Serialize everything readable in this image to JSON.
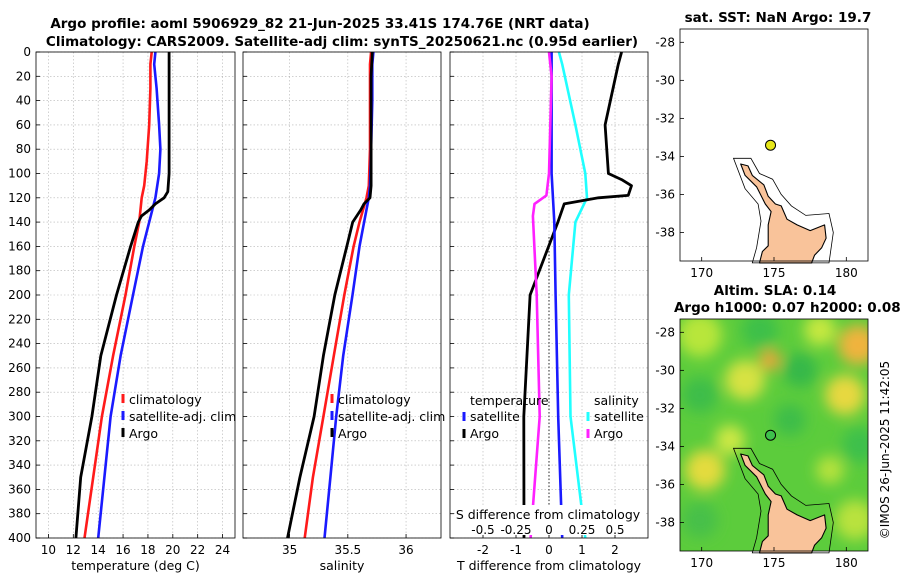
{
  "header": {
    "title_line1": "Argo profile: aoml 5906929_82 21-Jun-2025 33.41S 174.76E (NRT data)",
    "title_line2": "Climatology: CARS2009. Satellite-adj clim: synTS_20250621.nc (0.95d earlier)"
  },
  "colors": {
    "climatology": "#ff1a1a",
    "satellite": "#1a1aff",
    "argo": "#000000",
    "s_diff": "#ff20ff",
    "t_diff": "#20ffff",
    "land": "#f9c39a",
    "marker": "#e6e619"
  },
  "depth_axis": {
    "ticks": [
      0,
      20,
      40,
      60,
      80,
      100,
      120,
      140,
      160,
      180,
      200,
      220,
      240,
      260,
      280,
      300,
      320,
      340,
      360,
      380,
      400
    ],
    "range": [
      0,
      400
    ]
  },
  "chart_data": [
    {
      "type": "line",
      "name": "temperature",
      "xlabel": "temperature (deg C)",
      "ylabel": "depth",
      "xlim": [
        9,
        25
      ],
      "ylim": [
        400,
        0
      ],
      "xticks": [
        10,
        12,
        14,
        16,
        18,
        20,
        22,
        24
      ],
      "legend": [
        "climatology",
        "satellite-adj. clim",
        "Argo"
      ],
      "legend_placement": "lower-right",
      "series": [
        {
          "name": "climatology",
          "depth": [
            0,
            10,
            30,
            60,
            90,
            110,
            120,
            140,
            160,
            200,
            250,
            300,
            350,
            400
          ],
          "values": [
            18.3,
            18.2,
            18.2,
            18.1,
            17.9,
            17.7,
            17.5,
            17.3,
            16.9,
            16.2,
            15.2,
            14.3,
            13.6,
            12.9
          ]
        },
        {
          "name": "satellite-adj. clim",
          "depth": [
            0,
            10,
            30,
            60,
            80,
            100,
            120,
            140,
            160,
            200,
            250,
            300,
            350,
            400
          ],
          "values": [
            18.6,
            18.5,
            18.7,
            18.9,
            19.0,
            18.9,
            18.6,
            18.1,
            17.6,
            16.8,
            15.8,
            15.0,
            14.5,
            14.0
          ]
        },
        {
          "name": "Argo",
          "depth": [
            0,
            20,
            60,
            100,
            115,
            120,
            125,
            130,
            135,
            140,
            160,
            200,
            250,
            300,
            350,
            400
          ],
          "values": [
            19.7,
            19.7,
            19.7,
            19.7,
            19.6,
            19.3,
            18.7,
            18.0,
            17.5,
            17.3,
            16.5,
            15.4,
            14.3,
            13.4,
            12.7,
            12.1
          ]
        }
      ]
    },
    {
      "type": "line",
      "name": "salinity",
      "xlabel": "salinity",
      "ylabel": "depth",
      "xlim": [
        34.6,
        36.3
      ],
      "ylim": [
        400,
        0
      ],
      "xticks": [
        35,
        35.5,
        36
      ],
      "legend": [
        "climatology",
        "satellite-adj. clim",
        "Argo"
      ],
      "legend_placement": "lower-right",
      "series": [
        {
          "name": "climatology",
          "depth": [
            0,
            10,
            40,
            80,
            110,
            120,
            140,
            160,
            200,
            250,
            300,
            350,
            400
          ],
          "values": [
            35.7,
            35.69,
            35.69,
            35.69,
            35.68,
            35.66,
            35.6,
            35.55,
            35.47,
            35.38,
            35.29,
            35.2,
            35.13
          ]
        },
        {
          "name": "satellite-adj. clim",
          "depth": [
            0,
            10,
            40,
            80,
            110,
            120,
            140,
            160,
            200,
            250,
            300,
            350,
            400
          ],
          "values": [
            35.72,
            35.71,
            35.71,
            35.7,
            35.69,
            35.68,
            35.64,
            35.6,
            35.54,
            35.46,
            35.4,
            35.35,
            35.3
          ]
        },
        {
          "name": "Argo",
          "depth": [
            0,
            20,
            60,
            110,
            120,
            125,
            130,
            140,
            160,
            200,
            250,
            300,
            350,
            400
          ],
          "values": [
            35.71,
            35.7,
            35.7,
            35.7,
            35.69,
            35.65,
            35.6,
            35.55,
            35.48,
            35.38,
            35.3,
            35.2,
            35.1,
            34.97
          ]
        }
      ]
    },
    {
      "type": "line",
      "name": "difference from climatology",
      "xlabel": "T difference from climatology",
      "x2label": "S difference from climatology",
      "ylabel": "depth",
      "xlim": [
        -3,
        3
      ],
      "x2lim": [
        -0.75,
        0.75
      ],
      "ylim": [
        400,
        0
      ],
      "xticks": [
        -2,
        -1,
        0,
        1,
        2
      ],
      "x2ticks": [
        -0.5,
        -0.25,
        0,
        0.25,
        0.5
      ],
      "legend_temperature": [
        "temperature",
        "satellite",
        "Argo"
      ],
      "legend_salinity": [
        "salinity",
        "satellite",
        "Argo"
      ],
      "series": [
        {
          "name": "T satellite",
          "depth": [
            0,
            10,
            60,
            100,
            120,
            140,
            200,
            300,
            400
          ],
          "values": [
            0.3,
            0.4,
            0.8,
            1.1,
            1.15,
            0.8,
            0.6,
            0.65,
            1.1
          ]
        },
        {
          "name": "T Argo",
          "depth": [
            0,
            10,
            60,
            100,
            105,
            110,
            118,
            120,
            125,
            140,
            200,
            300,
            400
          ],
          "values": [
            2.2,
            2.1,
            1.7,
            1.8,
            2.2,
            2.5,
            2.4,
            1.5,
            0.5,
            0.3,
            -0.6,
            -0.8,
            -0.8
          ]
        },
        {
          "name": "S satellite",
          "depth": [
            0,
            20,
            100,
            140,
            200,
            300,
            400
          ],
          "values": [
            0.02,
            0.02,
            0.02,
            0.04,
            0.05,
            0.07,
            0.1
          ]
        },
        {
          "name": "S Argo",
          "depth": [
            0,
            20,
            100,
            118,
            125,
            135,
            200,
            300,
            400
          ],
          "values": [
            0,
            0.02,
            0,
            -0.02,
            -0.1,
            -0.12,
            -0.1,
            -0.08,
            -0.15
          ]
        }
      ]
    }
  ],
  "sst_map": {
    "title": "sat. SST: NaN Argo: 19.7",
    "xticks": [
      170,
      175,
      180
    ],
    "yticks": [
      -28,
      -30,
      -32,
      -34,
      -36,
      -38
    ],
    "xlim": [
      168.5,
      181.5
    ],
    "ylim": [
      -39.5,
      -27.3
    ],
    "argo_lon": 174.76,
    "argo_lat": -33.41
  },
  "sla_map": {
    "title_line1": "Altim. SLA: 0.14",
    "title_line2": "Argo h1000: 0.07 h2000: 0.084",
    "xticks": [
      170,
      175,
      180
    ],
    "yticks": [
      -28,
      -30,
      -32,
      -34,
      -36,
      -38
    ],
    "xlim": [
      168.5,
      181.5
    ],
    "ylim": [
      -39.5,
      -27.3
    ],
    "argo_lon": 174.76,
    "argo_lat": -33.41
  },
  "watermark": "©IMOS 26-Jun-2025 11:42:05"
}
